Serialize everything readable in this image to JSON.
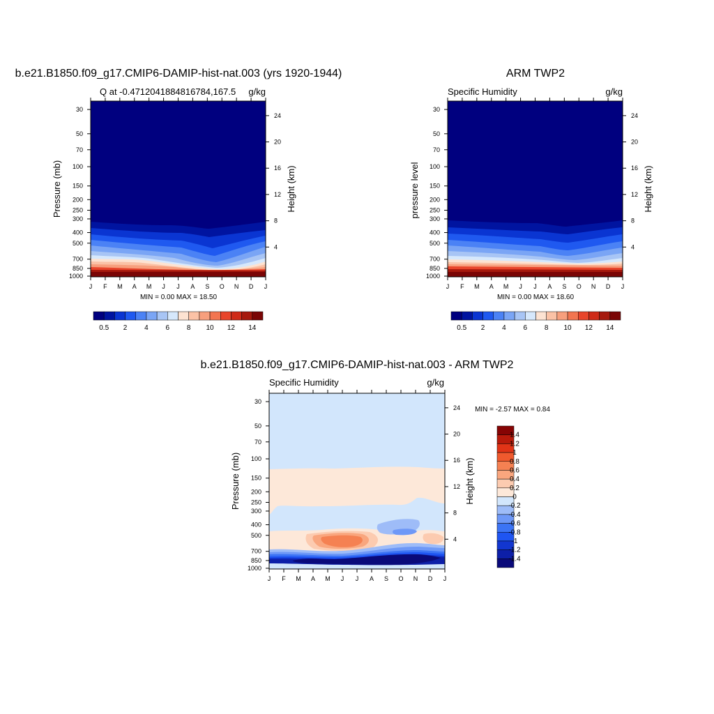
{
  "palette_full": [
    "#00007f",
    "#0014a0",
    "#0a35d2",
    "#1f59f0",
    "#4b82f5",
    "#7aa5f5",
    "#a8c5f5",
    "#d6e8fc",
    "#fde3d2",
    "#fbc2a6",
    "#f79f7d",
    "#f27550",
    "#e8452b",
    "#cf2a17",
    "#a6190d",
    "#7a0505"
  ],
  "diff_palette": [
    "#0a0a7a",
    "#0d1fa8",
    "#1236cf",
    "#1f55f2",
    "#3c74f5",
    "#6e98f7",
    "#9ebcf8",
    "#d2e6fc",
    "#fde8d9",
    "#fccbb0",
    "#f9a67e",
    "#f58152",
    "#f05a2e",
    "#e13417",
    "#b81a0b",
    "#860404"
  ],
  "panels": [
    {
      "title": "b.e21.B1850.f09_g17.CMIP6-DAMIP-hist-nat.003 (yrs 1920-1944)",
      "left_label": "Q at -0.47120418848167​84,167.5",
      "right_label": "g/kg",
      "ylabel": "Pressure (mb)",
      "y2label": "Height (km)",
      "minmax": "MIN =   0.00 MAX =  18.50",
      "months": [
        "J",
        "F",
        "M",
        "A",
        "M",
        "J",
        "J",
        "A",
        "S",
        "O",
        "N",
        "D",
        "J"
      ],
      "pressure_ticks": [
        "30",
        "50",
        "70",
        "100",
        "150",
        "200",
        "250",
        "300",
        "400",
        "500",
        "700",
        "850",
        "1000"
      ],
      "height_ticks": [
        "24",
        "20",
        "16",
        "12",
        "8",
        "4"
      ],
      "colorbar_labels": [
        "0.5",
        "2",
        "4",
        "6",
        "8",
        "10",
        "12",
        "14"
      ]
    },
    {
      "title": "ARM TWP2",
      "left_label": "Specific Humidity",
      "right_label": "g/kg",
      "ylabel": "pressure level",
      "y2label": "Height (km)",
      "minmax": "MIN =   0.00 MAX =  18.60",
      "months": [
        "J",
        "F",
        "M",
        "A",
        "M",
        "J",
        "J",
        "A",
        "S",
        "O",
        "N",
        "D",
        "J"
      ],
      "pressure_ticks": [
        "30",
        "50",
        "70",
        "100",
        "150",
        "200",
        "250",
        "300",
        "400",
        "500",
        "700",
        "850",
        "1000"
      ],
      "height_ticks": [
        "24",
        "20",
        "16",
        "12",
        "8",
        "4"
      ],
      "colorbar_labels": [
        "0.5",
        "2",
        "4",
        "6",
        "8",
        "10",
        "12",
        "14"
      ]
    },
    {
      "title": "b.e21.B1850.f09_g17.CMIP6-DAMIP-hist-nat.003 - ARM TWP2",
      "left_label": "Specific Humidity",
      "right_label": "g/kg",
      "ylabel": "Pressure (mb)",
      "y2label": "Height (km)",
      "minmax": "MIN =  -2.57 MAX =   0.84",
      "months": [
        "J",
        "F",
        "M",
        "A",
        "M",
        "J",
        "J",
        "A",
        "S",
        "O",
        "N",
        "D",
        "J"
      ],
      "pressure_ticks": [
        "30",
        "50",
        "70",
        "100",
        "150",
        "200",
        "250",
        "300",
        "400",
        "500",
        "700",
        "850",
        "1000"
      ],
      "height_ticks": [
        "24",
        "20",
        "16",
        "12",
        "8",
        "4"
      ],
      "colorbar_labels": [
        "1.4",
        "1.2",
        "1",
        "0.8",
        "0.6",
        "0.4",
        "0.2",
        "0",
        "-0.2",
        "-0.4",
        "-0.6",
        "-0.8",
        "-1",
        "-1.2",
        "-1.4"
      ]
    }
  ],
  "chart_data": [
    {
      "type": "heatmap",
      "title": "b.e21.B1850.f09_g17.CMIP6-DAMIP-hist-nat.003 (yrs 1920-1944)",
      "variable": "Q at -0.47120418848167​84,167.5",
      "units": "g/kg",
      "x": [
        "J",
        "F",
        "M",
        "A",
        "M",
        "J",
        "J",
        "A",
        "S",
        "O",
        "N",
        "D",
        "J"
      ],
      "y_pressure_mb": [
        30,
        50,
        70,
        100,
        150,
        200,
        250,
        300,
        400,
        500,
        700,
        850,
        1000
      ],
      "y_height_km": [
        24,
        20,
        16,
        12,
        8,
        4
      ],
      "min": 0.0,
      "max": 18.5,
      "colorbar_levels": [
        0.5,
        2,
        4,
        6,
        8,
        10,
        12,
        14
      ]
    },
    {
      "type": "heatmap",
      "title": "ARM TWP2",
      "variable": "Specific Humidity",
      "units": "g/kg",
      "x": [
        "J",
        "F",
        "M",
        "A",
        "M",
        "J",
        "J",
        "A",
        "S",
        "O",
        "N",
        "D",
        "J"
      ],
      "y_pressure_mb": [
        30,
        50,
        70,
        100,
        150,
        200,
        250,
        300,
        400,
        500,
        700,
        850,
        1000
      ],
      "y_height_km": [
        24,
        20,
        16,
        12,
        8,
        4
      ],
      "min": 0.0,
      "max": 18.6,
      "colorbar_levels": [
        0.5,
        2,
        4,
        6,
        8,
        10,
        12,
        14
      ]
    },
    {
      "type": "heatmap",
      "title": "b.e21.B1850.f09_g17.CMIP6-DAMIP-hist-nat.003 - ARM TWP2",
      "variable": "Specific Humidity",
      "units": "g/kg",
      "x": [
        "J",
        "F",
        "M",
        "A",
        "M",
        "J",
        "J",
        "A",
        "S",
        "O",
        "N",
        "D",
        "J"
      ],
      "y_pressure_mb": [
        30,
        50,
        70,
        100,
        150,
        200,
        250,
        300,
        400,
        500,
        700,
        850,
        1000
      ],
      "y_height_km": [
        24,
        20,
        16,
        12,
        8,
        4
      ],
      "min": -2.57,
      "max": 0.84,
      "colorbar_levels": [
        -1.4,
        -1.2,
        -1,
        -0.8,
        -0.6,
        -0.4,
        -0.2,
        0,
        0.2,
        0.4,
        0.6,
        0.8,
        1,
        1.2,
        1.4
      ]
    }
  ]
}
